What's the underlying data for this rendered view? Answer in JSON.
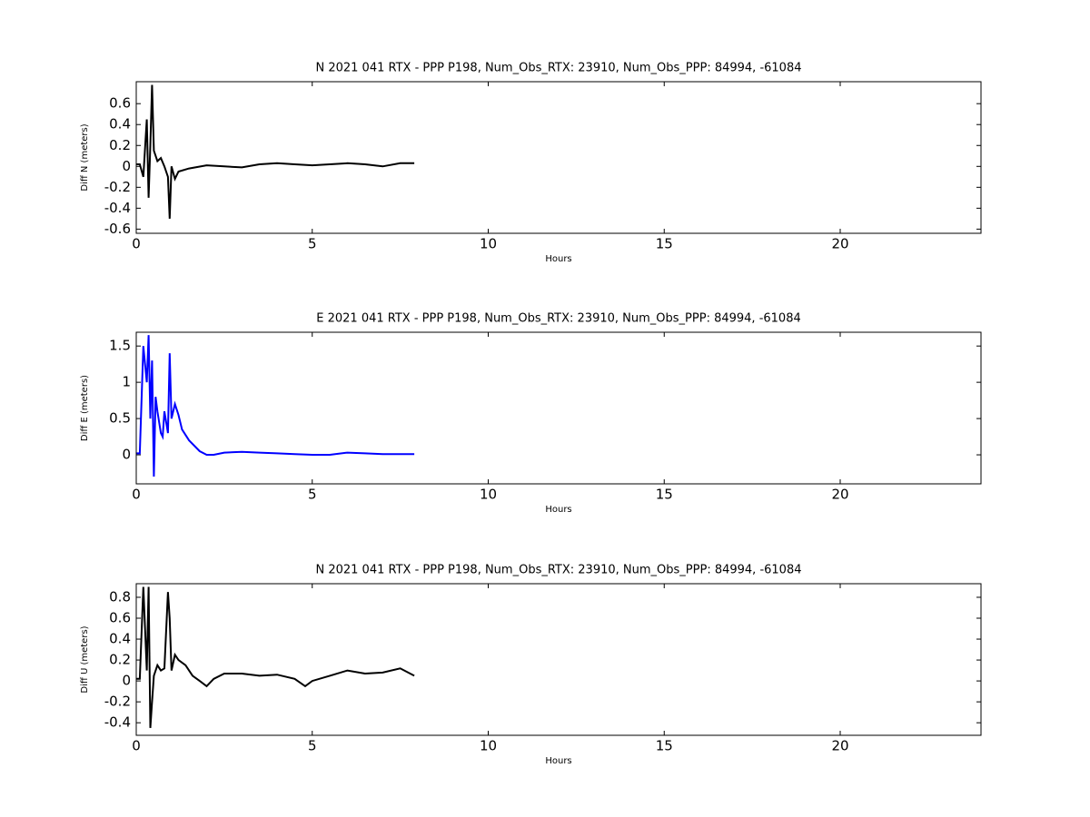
{
  "chart_data": [
    {
      "type": "line",
      "title": "N 2021 041 RTX - PPP  P198, Num_Obs_RTX: 23910, Num_Obs_PPP: 84994, -61084",
      "xlabel": "Hours",
      "ylabel": "Diff N (meters)",
      "color": "#000000",
      "xlim": [
        0,
        24
      ],
      "xticks": [
        0,
        5,
        10,
        15,
        20
      ],
      "ylim": [
        -0.64,
        0.81
      ],
      "yticks": [
        -0.6,
        -0.4,
        -0.2,
        0.0,
        0.2,
        0.4,
        0.6
      ],
      "x": [
        0,
        0.1,
        0.2,
        0.3,
        0.35,
        0.4,
        0.45,
        0.5,
        0.6,
        0.7,
        0.8,
        0.9,
        0.95,
        1.0,
        1.1,
        1.2,
        1.5,
        2,
        2.5,
        3,
        3.5,
        4,
        4.5,
        5,
        5.5,
        6,
        6.5,
        7,
        7.5,
        7.9
      ],
      "values": [
        0.02,
        0.02,
        -0.1,
        0.45,
        -0.3,
        0.2,
        0.78,
        0.15,
        0.05,
        0.08,
        0.0,
        -0.1,
        -0.5,
        0.0,
        -0.12,
        -0.05,
        -0.02,
        0.01,
        0.0,
        -0.01,
        0.02,
        0.03,
        0.02,
        0.01,
        0.02,
        0.03,
        0.02,
        0.0,
        0.03,
        0.03
      ]
    },
    {
      "type": "line",
      "title": "E 2021 041 RTX - PPP  P198, Num_Obs_RTX: 23910, Num_Obs_PPP: 84994, -61084",
      "xlabel": "Hours",
      "ylabel": "Diff E (meters)",
      "color": "#0000ff",
      "xlim": [
        0,
        24
      ],
      "xticks": [
        0,
        5,
        10,
        15,
        20
      ],
      "ylim": [
        -0.4,
        1.69
      ],
      "yticks": [
        0.0,
        0.5,
        1.0,
        1.5
      ],
      "x": [
        0,
        0.1,
        0.2,
        0.3,
        0.35,
        0.4,
        0.45,
        0.5,
        0.55,
        0.6,
        0.7,
        0.75,
        0.8,
        0.9,
        0.95,
        1.0,
        1.1,
        1.2,
        1.3,
        1.5,
        1.8,
        2,
        2.2,
        2.5,
        3,
        3.5,
        4,
        4.5,
        5,
        5.5,
        6,
        6.5,
        7,
        7.5,
        7.9
      ],
      "values": [
        0.02,
        0.02,
        1.5,
        1.0,
        1.65,
        0.5,
        1.3,
        -0.3,
        0.8,
        0.6,
        0.3,
        0.25,
        0.6,
        0.3,
        1.4,
        0.5,
        0.7,
        0.55,
        0.35,
        0.2,
        0.05,
        0.0,
        0.0,
        0.03,
        0.04,
        0.03,
        0.02,
        0.01,
        0.0,
        0.0,
        0.03,
        0.02,
        0.01,
        0.01,
        0.01
      ]
    },
    {
      "type": "line",
      "title": "N 2021 041 RTX - PPP  P198, Num_Obs_RTX: 23910, Num_Obs_PPP: 84994, -61084",
      "xlabel": "Hours",
      "ylabel": "Diff U (meters)",
      "color": "#000000",
      "xlim": [
        0,
        24
      ],
      "xticks": [
        0,
        5,
        10,
        15,
        20
      ],
      "ylim": [
        -0.52,
        0.93
      ],
      "yticks": [
        -0.4,
        -0.2,
        0.0,
        0.2,
        0.4,
        0.6,
        0.8
      ],
      "x": [
        0,
        0.1,
        0.2,
        0.3,
        0.35,
        0.4,
        0.45,
        0.5,
        0.6,
        0.7,
        0.8,
        0.9,
        0.95,
        1.0,
        1.1,
        1.2,
        1.4,
        1.6,
        1.8,
        2,
        2.2,
        2.5,
        3,
        3.5,
        4,
        4.5,
        4.8,
        5,
        5.5,
        6,
        6.5,
        7,
        7.5,
        7.9
      ],
      "values": [
        0.02,
        0.02,
        0.9,
        0.1,
        0.9,
        -0.45,
        -0.2,
        0.05,
        0.15,
        0.1,
        0.12,
        0.85,
        0.6,
        0.1,
        0.25,
        0.2,
        0.15,
        0.05,
        0.0,
        -0.05,
        0.02,
        0.07,
        0.07,
        0.05,
        0.06,
        0.02,
        -0.05,
        0.0,
        0.05,
        0.1,
        0.07,
        0.08,
        0.12,
        0.05
      ]
    }
  ]
}
